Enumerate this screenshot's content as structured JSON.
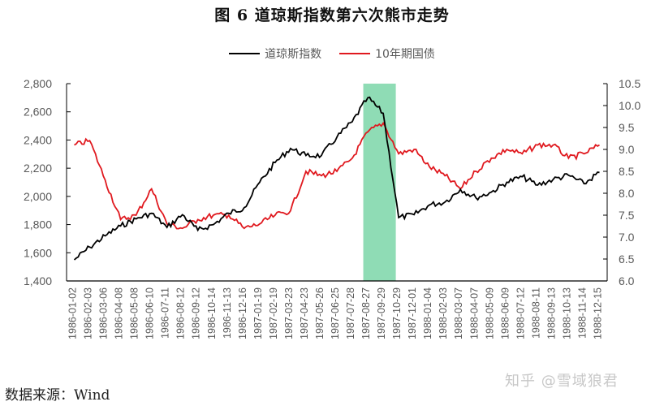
{
  "title": "图 6  道琼斯指数第六次熊市走势",
  "legend": [
    {
      "label": "道琼斯指数",
      "color": "#000000"
    },
    {
      "label": "10年期国债",
      "color": "#e0191f"
    }
  ],
  "source": "数据来源：Wind",
  "watermark": "知乎 @雪域狼君",
  "colors": {
    "dow": "#000000",
    "bond": "#e0191f",
    "shade": "#8fdcb5",
    "axis": "#000000",
    "tick_text": "#595959"
  },
  "chart_data": {
    "type": "line",
    "title": "图 6  道琼斯指数第六次熊市走势",
    "xlabel": "",
    "ylabel_left": "道琼斯指数",
    "ylabel_right": "10年期国债",
    "ylim_left": [
      1400,
      2800
    ],
    "ylim_right": [
      6.0,
      10.5
    ],
    "yticks_left": [
      "1,400",
      "1,600",
      "1,800",
      "2,000",
      "2,200",
      "2,400",
      "2,600",
      "2,800"
    ],
    "yticks_right": [
      "6.0",
      "6.5",
      "7.0",
      "7.5",
      "8.0",
      "8.5",
      "9.0",
      "9.5",
      "10.0",
      "10.5"
    ],
    "grid": false,
    "legend_position": "top",
    "shaded_region": {
      "start": "1987-08-27",
      "end": "1987-10-29",
      "color": "#8fdcb5"
    },
    "categories": [
      "1986-01-02",
      "1986-02-03",
      "1986-03-06",
      "1986-04-08",
      "1986-05-08",
      "1986-06-10",
      "1986-07-11",
      "1986-08-12",
      "1986-09-12",
      "1986-10-14",
      "1986-11-13",
      "1986-12-16",
      "1987-01-19",
      "1987-02-19",
      "1987-03-23",
      "1987-04-23",
      "1987-05-26",
      "1987-06-25",
      "1987-07-28",
      "1987-08-27",
      "1987-09-29",
      "1987-10-29",
      "1987-12-01",
      "1988-01-04",
      "1988-02-03",
      "1988-03-07",
      "1988-04-07",
      "1988-05-09",
      "1988-06-09",
      "1988-07-12",
      "1988-08-11",
      "1988-09-13",
      "1988-10-13",
      "1988-11-14",
      "1988-12-15"
    ],
    "series": [
      {
        "name": "道琼斯指数",
        "axis": "left",
        "color": "#000000",
        "values": [
          1550,
          1640,
          1720,
          1790,
          1840,
          1880,
          1780,
          1870,
          1760,
          1800,
          1880,
          1920,
          2100,
          2240,
          2340,
          2290,
          2290,
          2420,
          2530,
          2700,
          2590,
          1850,
          1870,
          1940,
          1960,
          2050,
          1990,
          2030,
          2100,
          2140,
          2080,
          2120,
          2150,
          2090,
          2170
        ]
      },
      {
        "name": "10年期国债",
        "axis": "right",
        "color": "#e0191f",
        "values": [
          9.1,
          9.2,
          8.3,
          7.4,
          7.5,
          8.1,
          7.3,
          7.2,
          7.4,
          7.5,
          7.5,
          7.2,
          7.3,
          7.5,
          7.6,
          8.5,
          8.4,
          8.5,
          8.8,
          9.4,
          9.6,
          8.9,
          9.0,
          8.6,
          8.4,
          8.1,
          8.5,
          8.8,
          9.0,
          8.9,
          9.1,
          9.1,
          8.8,
          8.9,
          9.1
        ]
      }
    ]
  }
}
